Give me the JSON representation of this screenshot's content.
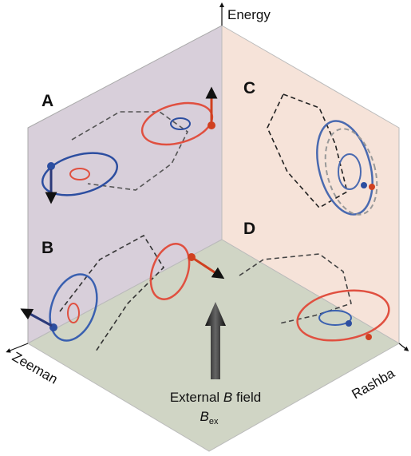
{
  "axes": {
    "vertical": "Energy",
    "left": "Zeeman",
    "right": "Rashba"
  },
  "panels": [
    "A",
    "B",
    "C",
    "D"
  ],
  "field_label": {
    "prefix": "External",
    "symbol": "B",
    "suffix": "field",
    "subscript_symbol": "B",
    "subscript": "ex"
  }
}
